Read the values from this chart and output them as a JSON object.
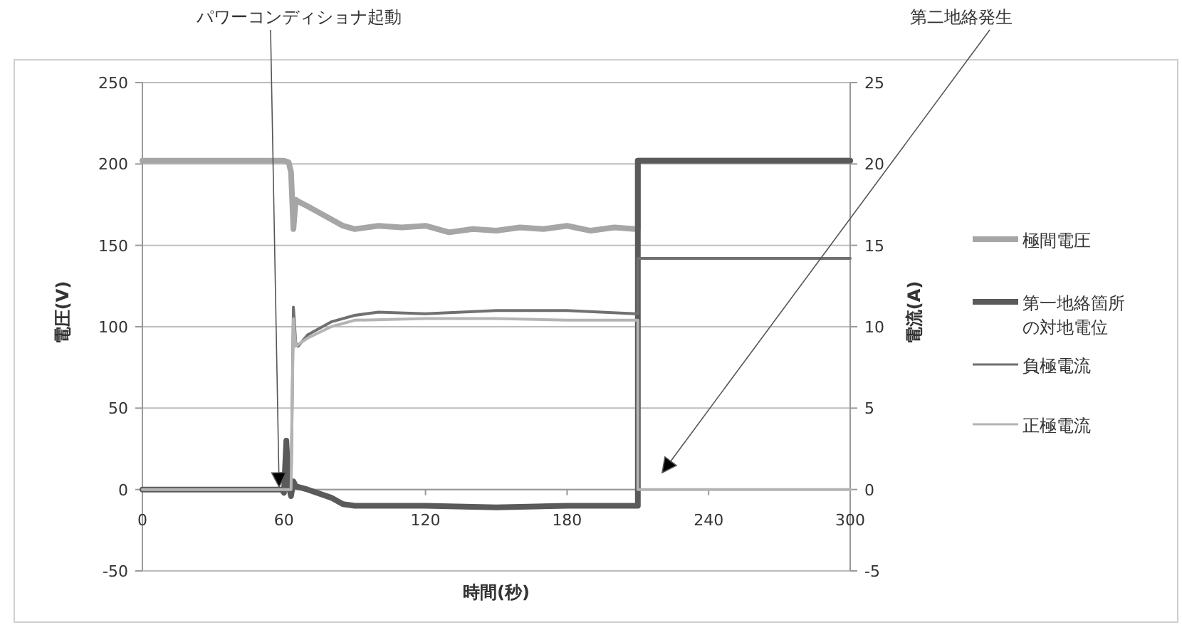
{
  "chart_data": {
    "type": "line",
    "xlabel": "時間(秒)",
    "ylabel": "電圧(V)",
    "y2label": "電流(A)",
    "xlim": [
      0,
      300
    ],
    "xticks": [
      0,
      60,
      120,
      180,
      240,
      300
    ],
    "ylim": [
      -50,
      250
    ],
    "yticks": [
      -50,
      0,
      50,
      100,
      150,
      200,
      250
    ],
    "y2lim": [
      -5,
      25
    ],
    "y2ticks": [
      -5,
      0,
      5,
      10,
      15,
      20,
      25
    ],
    "grid": "y",
    "legend": "right",
    "marker": "none",
    "line_style": "solid",
    "annotations": [
      "パワーコンディショナ起動",
      "第二地絡発生"
    ],
    "series": [
      {
        "name": "極間電圧",
        "color": "#a6a6a6",
        "x": [
          0,
          60,
          62,
          63,
          64,
          65,
          66,
          70,
          80,
          85,
          90,
          100,
          110,
          120,
          130,
          140,
          150,
          160,
          170,
          180,
          190,
          200,
          209,
          210,
          210,
          300
        ],
        "values": [
          202,
          202,
          201,
          195,
          160,
          178,
          177,
          174,
          166,
          162,
          160,
          162,
          161,
          162,
          158,
          160,
          159,
          161,
          160,
          162,
          159,
          161,
          160,
          160,
          202,
          202
        ]
      },
      {
        "name": "第一地絡箇所の対地電位",
        "color": "#5a5a5a",
        "x": [
          0,
          59,
          60,
          61,
          62,
          63,
          64,
          65,
          70,
          80,
          85,
          90,
          120,
          150,
          180,
          209,
          210,
          210,
          300
        ],
        "values": [
          0,
          0,
          -2,
          30,
          2,
          -4,
          5,
          2,
          0,
          -5,
          -9,
          -10,
          -10,
          -11,
          -10,
          -10,
          -10,
          202,
          202
        ]
      },
      {
        "name": "負極電流",
        "color": "#707070",
        "axis": "y2",
        "x": [
          0,
          62,
          63,
          64,
          65,
          66,
          70,
          80,
          90,
          100,
          120,
          150,
          180,
          209,
          210,
          210,
          300
        ],
        "values": [
          0,
          0,
          0,
          11.2,
          9,
          8.8,
          9.5,
          10.3,
          10.7,
          10.9,
          10.8,
          11,
          11,
          10.8,
          10.8,
          14.2,
          14.2
        ]
      },
      {
        "name": "正極電流",
        "color": "#b4b4b4",
        "axis": "y2",
        "x": [
          0,
          62,
          63,
          64,
          65,
          70,
          80,
          90,
          120,
          150,
          180,
          209,
          210,
          210,
          300
        ],
        "values": [
          0,
          0,
          0,
          10.5,
          8.8,
          9.3,
          10,
          10.4,
          10.5,
          10.5,
          10.4,
          10.4,
          10.4,
          0,
          0
        ]
      }
    ]
  }
}
